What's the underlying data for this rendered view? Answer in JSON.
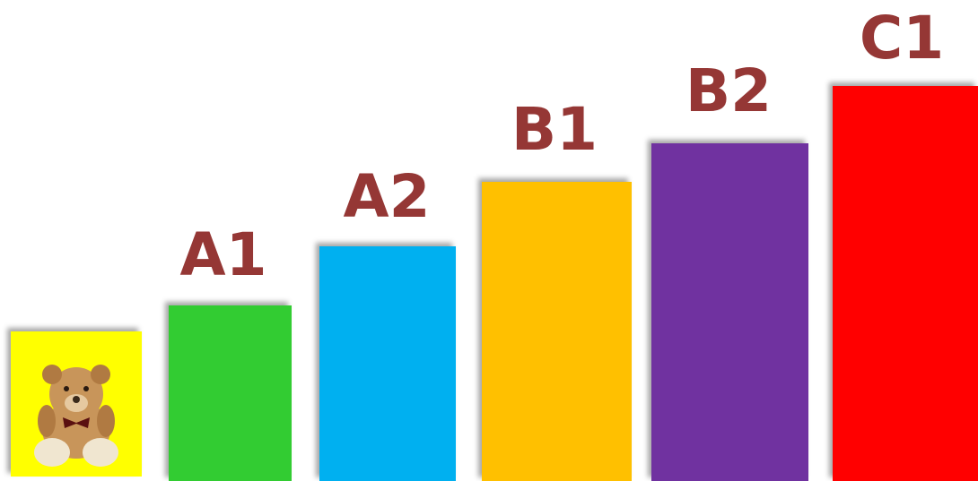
{
  "steps": [
    {
      "label": "A1"
    },
    {
      "label": "A2"
    },
    {
      "label": "B1"
    },
    {
      "label": "B2"
    },
    {
      "label": "C1"
    }
  ]
}
